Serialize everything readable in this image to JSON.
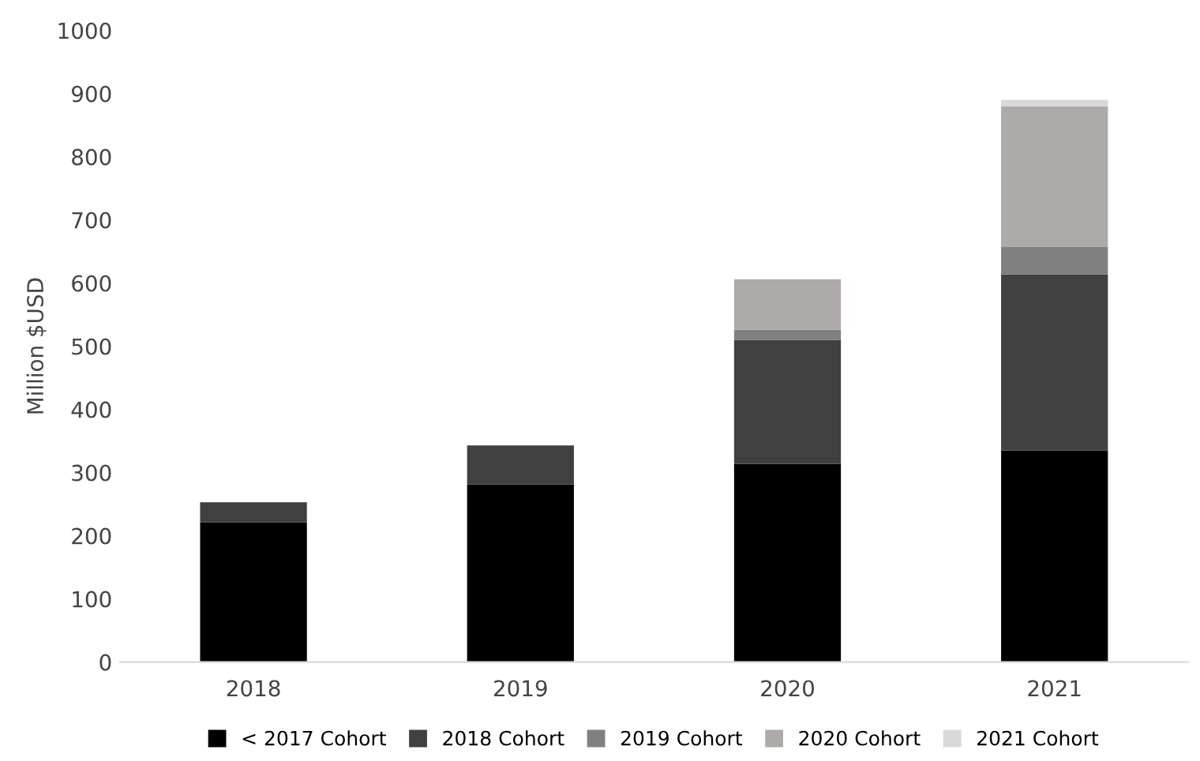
{
  "chart_data": {
    "type": "bar",
    "stacked": true,
    "ylabel": "Million $USD",
    "categories": [
      "2018",
      "2019",
      "2020",
      "2021"
    ],
    "series": [
      {
        "name": "< 2017 Cohort",
        "color": "#000000",
        "values": [
          221,
          281,
          314,
          335
        ]
      },
      {
        "name": "2018 Cohort",
        "color": "#404040",
        "values": [
          32,
          62,
          196,
          279
        ]
      },
      {
        "name": "2019 Cohort",
        "color": "#808080",
        "values": [
          null,
          null,
          16,
          43
        ]
      },
      {
        "name": "2020 Cohort",
        "color": "#aeaaaa",
        "values": [
          null,
          null,
          80,
          223
        ]
      },
      {
        "name": "2021 Cohort",
        "color": "#d9d9d9",
        "values": [
          null,
          null,
          null,
          10
        ]
      }
    ],
    "ylim": [
      0,
      1000
    ],
    "yticks": [
      0,
      100,
      200,
      300,
      400,
      500,
      600,
      700,
      800,
      900,
      1000
    ],
    "grid": false,
    "legend": "bottom"
  }
}
